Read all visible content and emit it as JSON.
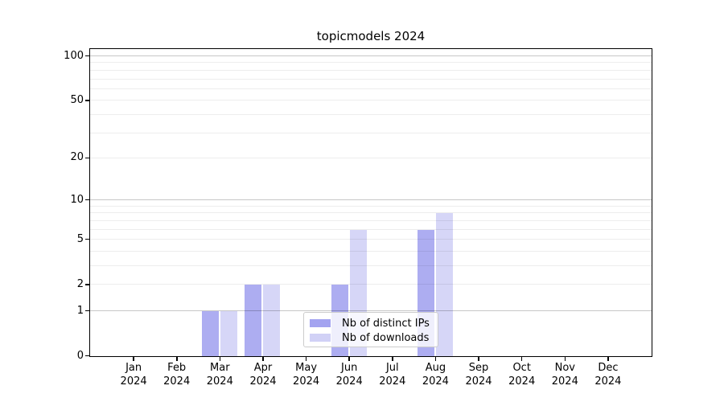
{
  "chart_data": {
    "type": "bar",
    "title": "topicmodels 2024",
    "categories": [
      "Jan",
      "Feb",
      "Mar",
      "Apr",
      "May",
      "Jun",
      "Jul",
      "Aug",
      "Sep",
      "Oct",
      "Nov",
      "Dec"
    ],
    "category_year": "2024",
    "series": [
      {
        "name": "Nb of distinct IPs",
        "color": "#9999ee",
        "values": [
          0,
          0,
          1,
          2,
          0,
          2,
          0,
          6,
          0,
          0,
          0,
          0
        ]
      },
      {
        "name": "Nb of downloads",
        "color": "#ccccf5",
        "values": [
          0,
          0,
          1,
          2,
          0,
          6,
          0,
          8,
          0,
          0,
          0,
          0
        ]
      }
    ],
    "xlabel": "",
    "ylabel": "",
    "yscale": "log1p",
    "ylim": [
      0,
      100
    ],
    "y_ticks": [
      0,
      1,
      2,
      5,
      10,
      20,
      50,
      100
    ],
    "gridlines_major": [
      1,
      10,
      100
    ],
    "gridlines_minor": [
      2,
      3,
      4,
      5,
      6,
      7,
      8,
      9,
      20,
      30,
      40,
      50,
      60,
      70,
      80,
      90
    ],
    "grid": true,
    "legend": {
      "position": "lower-center",
      "entries": [
        "Nb of distinct IPs",
        "Nb of downloads"
      ]
    },
    "colors": {
      "bar_distinct_ips": "#9999ee",
      "bar_downloads": "#ccccf5",
      "grid_major": "rgba(0,0,0,0.22)",
      "grid_minor": "rgba(0,0,0,0.07)",
      "axis": "#000000",
      "text": "#000000",
      "legend_border": "#cccccc",
      "legend_background": "rgba(255,255,255,0.8)",
      "figure_background": "#ffffff"
    }
  }
}
